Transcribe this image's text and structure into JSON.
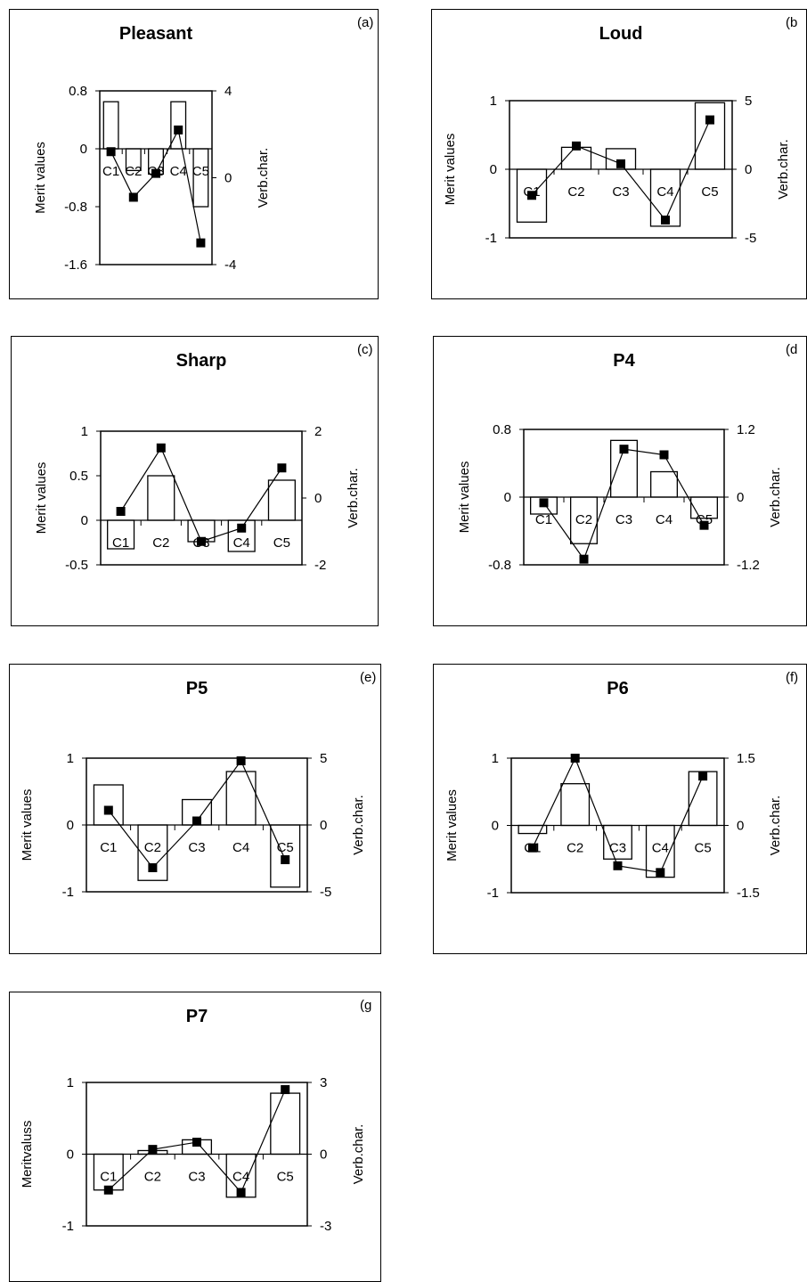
{
  "chart_data": [
    {
      "type": "bar",
      "title": "Pleasant",
      "panel_label": "(a)",
      "categories": [
        "C1",
        "C2",
        "C3",
        "C4",
        "C5"
      ],
      "ylabel": "Merit values",
      "y2label": "Verb.char.",
      "ylim": [
        -1.6,
        0.8
      ],
      "yticks": [
        "0.8",
        "0",
        "-0.8",
        "-1.6"
      ],
      "y2lim": [
        -4,
        4
      ],
      "y2ticks": [
        "4",
        "0",
        "-4"
      ],
      "grid": false,
      "series": [
        {
          "type": "bar",
          "axis": "left",
          "values": [
            0.65,
            -0.3,
            -0.35,
            0.65,
            -0.8
          ]
        },
        {
          "type": "line",
          "axis": "right",
          "marker": "square",
          "values": [
            1.2,
            -0.9,
            0.2,
            2.2,
            -3.0
          ]
        }
      ]
    },
    {
      "type": "bar",
      "title": "Loud",
      "panel_label": "(b",
      "categories": [
        "C1",
        "C2",
        "C3",
        "C4",
        "C5"
      ],
      "ylabel": "Merit values",
      "y2label": "Verb.char.",
      "ylim": [
        -1,
        1
      ],
      "yticks": [
        "1",
        "0",
        "-1"
      ],
      "y2lim": [
        -5,
        5
      ],
      "y2ticks": [
        "5",
        "0",
        "-5"
      ],
      "grid": false,
      "series": [
        {
          "type": "bar",
          "axis": "left",
          "values": [
            -0.77,
            0.32,
            0.3,
            -0.83,
            0.97
          ]
        },
        {
          "type": "line",
          "axis": "right",
          "marker": "square",
          "values": [
            -1.9,
            1.7,
            0.4,
            -3.7,
            3.6
          ]
        }
      ]
    },
    {
      "type": "bar",
      "title": "Sharp",
      "panel_label": "(c)",
      "categories": [
        "C1",
        "C2",
        "C3",
        "C4",
        "C5"
      ],
      "ylabel": "Merit values",
      "y2label": "Verb.char.",
      "ylim": [
        -0.5,
        1
      ],
      "yticks": [
        "1",
        "0.5",
        "0",
        "-0.5"
      ],
      "y2lim": [
        -2,
        2
      ],
      "y2ticks": [
        "2",
        "0",
        "-2"
      ],
      "grid": false,
      "series": [
        {
          "type": "bar",
          "axis": "left",
          "values": [
            -0.32,
            0.5,
            -0.24,
            -0.35,
            0.45
          ]
        },
        {
          "type": "line",
          "axis": "right",
          "marker": "square",
          "values": [
            -0.4,
            1.5,
            -1.3,
            -0.9,
            0.9
          ]
        }
      ]
    },
    {
      "type": "bar",
      "title": "P4",
      "panel_label": "(d",
      "categories": [
        "C1",
        "C2",
        "C3",
        "C4",
        "C5"
      ],
      "ylabel": "Merit values",
      "y2label": "Verb.char.",
      "ylim": [
        -0.8,
        0.8
      ],
      "yticks": [
        "0.8",
        "0",
        "-0.8"
      ],
      "y2lim": [
        -1.2,
        1.2
      ],
      "y2ticks": [
        "1.2",
        "0",
        "-1.2"
      ],
      "grid": false,
      "series": [
        {
          "type": "bar",
          "axis": "left",
          "values": [
            -0.2,
            -0.55,
            0.67,
            0.3,
            -0.25
          ]
        },
        {
          "type": "line",
          "axis": "right",
          "marker": "square",
          "values": [
            -0.1,
            -1.1,
            0.85,
            0.75,
            -0.5
          ]
        }
      ]
    },
    {
      "type": "bar",
      "title": "P5",
      "panel_label": "(e)",
      "categories": [
        "C1",
        "C2",
        "C3",
        "C4",
        "C5"
      ],
      "ylabel": "Merit values",
      "y2label": "Verb.char.",
      "ylim": [
        -1,
        1
      ],
      "yticks": [
        "1",
        "0",
        "-1"
      ],
      "y2lim": [
        -5,
        5
      ],
      "y2ticks": [
        "5",
        "0",
        "-5"
      ],
      "grid": false,
      "series": [
        {
          "type": "bar",
          "axis": "left",
          "values": [
            0.6,
            -0.83,
            0.38,
            0.8,
            -0.93
          ]
        },
        {
          "type": "line",
          "axis": "right",
          "marker": "square",
          "values": [
            1.1,
            -3.2,
            0.3,
            4.8,
            -2.6
          ]
        }
      ]
    },
    {
      "type": "bar",
      "title": "P6",
      "panel_label": "(f)",
      "categories": [
        "C1",
        "C2",
        "C3",
        "C4",
        "C5"
      ],
      "ylabel": "Merit values",
      "y2label": "Verb.char.",
      "ylim": [
        -1,
        1
      ],
      "yticks": [
        "1",
        "0",
        "-1"
      ],
      "y2lim": [
        -1.5,
        1.5
      ],
      "y2ticks": [
        "1.5",
        "0",
        "-1.5"
      ],
      "grid": false,
      "series": [
        {
          "type": "bar",
          "axis": "left",
          "values": [
            -0.12,
            0.62,
            -0.5,
            -0.77,
            0.8
          ]
        },
        {
          "type": "line",
          "axis": "right",
          "marker": "square",
          "values": [
            -0.5,
            1.5,
            -0.9,
            -1.05,
            1.1
          ]
        }
      ]
    },
    {
      "type": "bar",
      "title": "P7",
      "panel_label": "(g",
      "categories": [
        "C1",
        "C2",
        "C3",
        "C4",
        "C5"
      ],
      "ylabel": "Meritvaluss",
      "y2label": "Verb.char.",
      "ylim": [
        -1,
        1
      ],
      "yticks": [
        "1",
        "0",
        "-1"
      ],
      "y2lim": [
        -3,
        3
      ],
      "y2ticks": [
        "3",
        "0",
        "-3"
      ],
      "grid": false,
      "series": [
        {
          "type": "bar",
          "axis": "left",
          "values": [
            -0.5,
            0.05,
            0.2,
            -0.6,
            0.85
          ]
        },
        {
          "type": "line",
          "axis": "right",
          "marker": "square",
          "values": [
            -1.5,
            0.2,
            0.5,
            -1.6,
            2.7
          ]
        }
      ]
    }
  ]
}
